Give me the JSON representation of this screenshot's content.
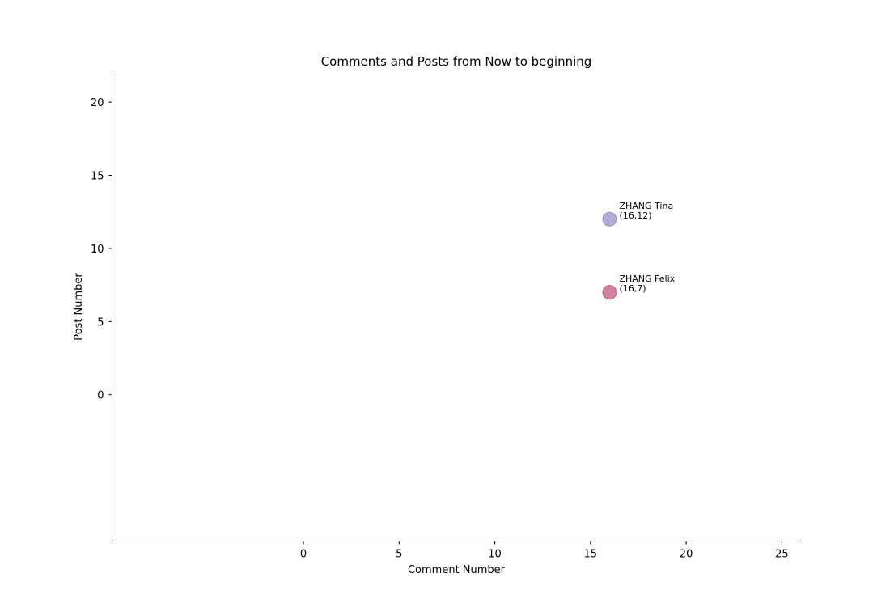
{
  "chart_data": {
    "type": "scatter",
    "title": "Comments and Posts from Now to beginning",
    "xlabel": "Comment Number",
    "ylabel": "Post Number",
    "xlim": [
      -10,
      26
    ],
    "ylim": [
      -10,
      22
    ],
    "xticks": [
      0,
      5,
      10,
      15,
      20,
      25
    ],
    "yticks": [
      0,
      5,
      10,
      15,
      20
    ],
    "grid": false,
    "points": [
      {
        "name": "ZHANG Tina",
        "x": 16,
        "y": 12,
        "label": "(16,12)",
        "color": "#9b8fcc"
      },
      {
        "name": "ZHANG Felix",
        "x": 16,
        "y": 7,
        "label": "(16,7)",
        "color": "#c0587e"
      }
    ]
  }
}
